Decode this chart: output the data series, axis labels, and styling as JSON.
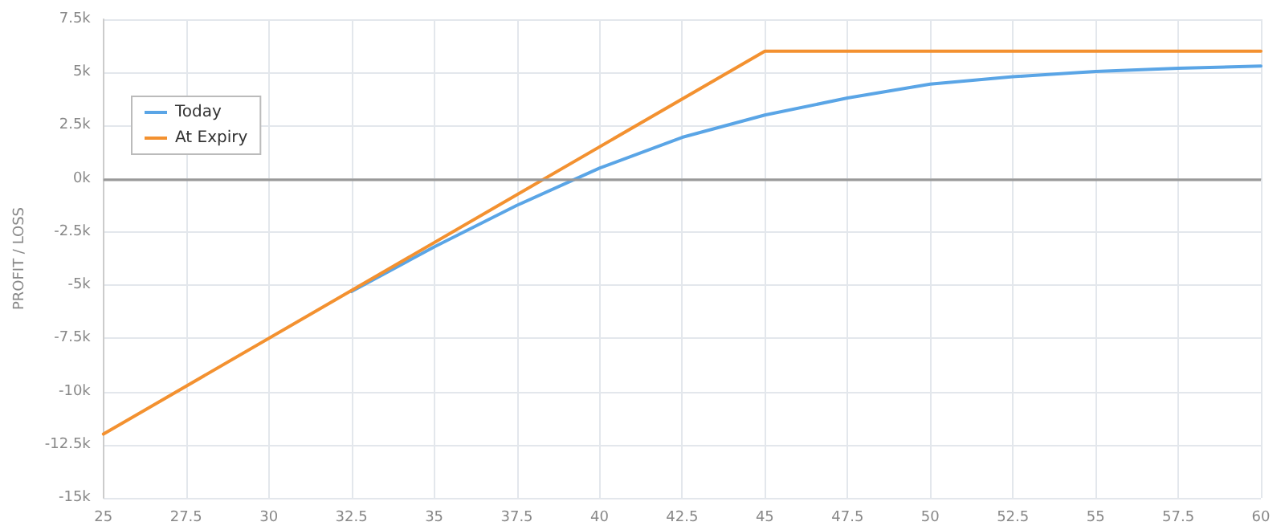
{
  "chart_data": {
    "type": "line",
    "ylabel": "PROFIT / LOSS",
    "xlim": [
      25,
      60
    ],
    "xticks": [
      25,
      27.5,
      30,
      32.5,
      35,
      37.5,
      40,
      42.5,
      45,
      47.5,
      50,
      52.5,
      55,
      57.5,
      60
    ],
    "ylim": [
      -15000,
      7500
    ],
    "yticks": [
      {
        "value": -15000,
        "label": "-15k"
      },
      {
        "value": -12500,
        "label": "-12.5k"
      },
      {
        "value": -10000,
        "label": "-10k"
      },
      {
        "value": -7500,
        "label": "-7.5k"
      },
      {
        "value": -5000,
        "label": "-5k"
      },
      {
        "value": -2500,
        "label": "-2.5k"
      },
      {
        "value": 0,
        "label": "0k"
      },
      {
        "value": 2500,
        "label": "2.5k"
      },
      {
        "value": 5000,
        "label": "5k"
      },
      {
        "value": 7500,
        "label": "7.5k"
      }
    ],
    "series": [
      {
        "name": "Today",
        "color": "#5aa5e6",
        "x": [
          32.5,
          35,
          37.5,
          40,
          42.5,
          45,
          47.5,
          50,
          52.5,
          55,
          57.5,
          60
        ],
        "values": [
          -5300,
          -3200,
          -1250,
          500,
          1950,
          3000,
          3800,
          4450,
          4800,
          5050,
          5200,
          5300
        ]
      },
      {
        "name": "At Expiry",
        "color": "#f39130",
        "x": [
          25,
          45,
          60
        ],
        "values": [
          -12000,
          6000,
          6000
        ]
      }
    ],
    "ref_lines": [
      {
        "axis": "y",
        "value": 0,
        "color": "#999999"
      }
    ],
    "grid": true,
    "legend": "top left",
    "marker": "none",
    "line_style": "solid"
  }
}
